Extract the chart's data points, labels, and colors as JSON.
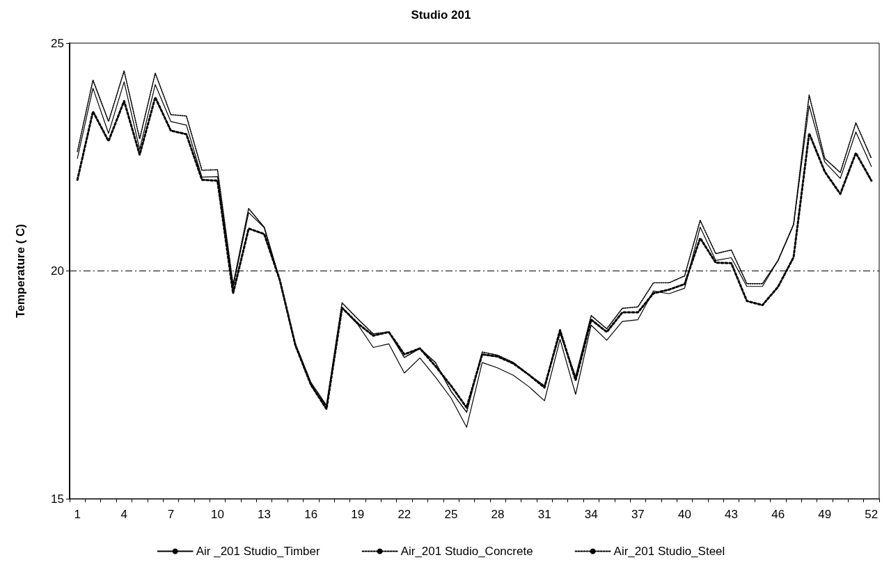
{
  "chart_data": {
    "type": "line",
    "title": "Studio 201",
    "ylabel": "Temperature ( C)",
    "categories": [
      "1",
      null,
      null,
      "4",
      null,
      null,
      "7",
      null,
      null,
      "10",
      null,
      null,
      "13",
      null,
      null,
      "16",
      null,
      null,
      "19",
      null,
      null,
      "22",
      null,
      null,
      "25",
      null,
      null,
      "28",
      null,
      null,
      "31",
      null,
      null,
      "34",
      null,
      null,
      "37",
      null,
      null,
      "40",
      null,
      null,
      "43",
      null,
      null,
      "46",
      null,
      null,
      "49",
      null,
      null,
      "52"
    ],
    "series": [
      {
        "name": "Air _201 Studio_Timber",
        "color": "#000000",
        "line_style": "solid",
        "values": [
          22.47,
          24.01,
          23.02,
          24.15,
          22.67,
          24.09,
          23.28,
          23.2,
          22.06,
          22.07,
          19.65,
          21.28,
          20.95,
          19.8,
          18.37,
          17.5,
          17.03,
          19.19,
          18.83,
          18.32,
          18.4,
          17.76,
          18.09,
          17.67,
          17.21,
          16.57,
          17.99,
          17.87,
          17.71,
          17.46,
          17.15,
          18.5,
          17.29,
          18.81,
          18.48,
          18.89,
          18.93,
          19.56,
          19.5,
          19.62,
          20.96,
          20.23,
          20.29,
          19.66,
          19.66,
          20.23,
          21.02,
          23.63,
          22.39,
          22.03,
          23.05,
          22.29
        ]
      },
      {
        "name": "Air_201 Studio_Concrete",
        "color": "#000000",
        "line_style": "dotted",
        "values": [
          22.0,
          23.5,
          22.85,
          23.73,
          22.55,
          23.81,
          23.08,
          23.0,
          22.0,
          21.98,
          19.51,
          20.93,
          20.81,
          19.8,
          18.37,
          17.5,
          16.97,
          19.19,
          18.85,
          18.58,
          18.66,
          18.17,
          18.3,
          17.91,
          17.48,
          17.0,
          18.17,
          18.12,
          17.97,
          17.72,
          17.44,
          18.7,
          17.6,
          18.93,
          18.66,
          19.09,
          19.09,
          19.51,
          19.59,
          19.71,
          20.72,
          20.18,
          20.17,
          19.34,
          19.25,
          19.65,
          20.3,
          23.02,
          22.18,
          21.69,
          22.59,
          21.98
        ]
      },
      {
        "name": "Air_201 Studio_Steel",
        "color": "#000000",
        "line_style": "dotted",
        "values": [
          22.62,
          24.19,
          23.28,
          24.39,
          22.9,
          24.34,
          23.43,
          23.4,
          22.21,
          22.22,
          19.7,
          21.37,
          20.96,
          19.8,
          18.4,
          17.55,
          17.05,
          19.3,
          18.95,
          18.62,
          18.66,
          18.1,
          18.3,
          17.99,
          17.36,
          16.9,
          18.22,
          18.15,
          17.99,
          17.72,
          17.48,
          18.63,
          17.68,
          19.02,
          18.73,
          19.18,
          19.21,
          19.74,
          19.74,
          19.89,
          21.11,
          20.38,
          20.46,
          19.72,
          19.72,
          20.23,
          21.02,
          23.86,
          22.47,
          22.16,
          23.25,
          22.47
        ]
      }
    ],
    "ylim": [
      15,
      25
    ],
    "yticks": [
      15,
      20,
      25
    ],
    "ref_lines": [
      {
        "axis": "y",
        "value": 20,
        "color": "#000000",
        "line_style": "dashed"
      }
    ],
    "grid": false,
    "legend": "bottom",
    "marker": "none"
  }
}
